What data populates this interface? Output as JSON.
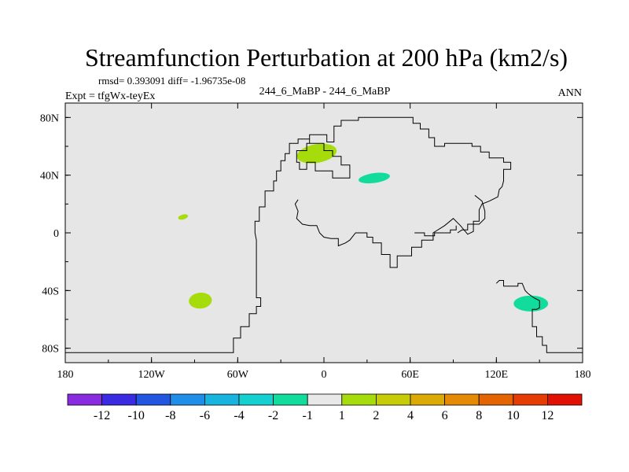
{
  "chart_data": {
    "type": "contour_map",
    "title": "Streamfunction Perturbation at 200 hPa (km2/s)",
    "stats_label": "rmsd= 0.393091 diff= -1.96735e-08",
    "experiment_label": "Expt = tfgWx-teyEx",
    "case_label": "244_6_MaBP - 244_6_MaBP",
    "season_label": "ANN",
    "xlim": [
      -180,
      180
    ],
    "ylim": [
      -90,
      90
    ],
    "x_ticks": [
      {
        "value": -180,
        "label": "180"
      },
      {
        "value": -120,
        "label": "120W"
      },
      {
        "value": -60,
        "label": "60W"
      },
      {
        "value": 0,
        "label": "0"
      },
      {
        "value": 60,
        "label": "60E"
      },
      {
        "value": 120,
        "label": "120E"
      },
      {
        "value": 180,
        "label": "180"
      }
    ],
    "y_ticks": [
      {
        "value": 80,
        "label": "80N"
      },
      {
        "value": 40,
        "label": "40N"
      },
      {
        "value": 0,
        "label": "0"
      },
      {
        "value": -40,
        "label": "40S"
      },
      {
        "value": -80,
        "label": "80S"
      }
    ],
    "colorbar": {
      "colors": [
        "#8A2BE2",
        "#3A2BE2",
        "#2255E0",
        "#1E8EE8",
        "#18B4E0",
        "#14D0D0",
        "#12DC9C",
        "#E8E8E8",
        "#A6DC0C",
        "#C8CC08",
        "#DCAA04",
        "#E48A04",
        "#E46402",
        "#E43C02",
        "#E01002"
      ],
      "labels": [
        "-12",
        "-10",
        "-8",
        "-6",
        "-4",
        "-2",
        "-1",
        "1",
        "2",
        "4",
        "6",
        "8",
        "10",
        "12"
      ]
    },
    "anomalies": [
      {
        "name": "positive-anomaly-north-atlantic",
        "lon": -5,
        "lat": 55,
        "rx": 14,
        "ry": 6.5,
        "rot": -10,
        "color": "#A6DC0C"
      },
      {
        "name": "negative-anomaly-middle-east",
        "lon": 35,
        "lat": 38,
        "rx": 11,
        "ry": 3.4,
        "rot": -8,
        "color": "#12DC9C"
      },
      {
        "name": "positive-anomaly-tropical-pacific",
        "lon": -98,
        "lat": 11,
        "rx": 3.5,
        "ry": 1.7,
        "rot": -15,
        "color": "#A6DC0C"
      },
      {
        "name": "positive-anomaly-south-pacific",
        "lon": -86,
        "lat": -47,
        "rx": 8,
        "ry": 5.5,
        "rot": -5,
        "color": "#A6DC0C"
      },
      {
        "name": "negative-anomaly-south-of-australia",
        "lon": 144,
        "lat": -49,
        "rx": 12,
        "ry": 5.5,
        "rot": 0,
        "color": "#12DC9C"
      }
    ],
    "coastlines": [
      [
        [
          -180,
          -83
        ],
        [
          -63,
          -83
        ],
        [
          -63,
          -73
        ],
        [
          -58,
          -73
        ],
        [
          -58,
          -65
        ],
        [
          -52,
          -65
        ],
        [
          -52,
          -56
        ],
        [
          -47,
          -56
        ],
        [
          -47,
          -51
        ],
        [
          -44,
          -51
        ],
        [
          -44,
          -45
        ],
        [
          -47,
          -45
        ],
        [
          -47,
          -38
        ],
        [
          -47,
          -15
        ],
        [
          -47,
          -5
        ],
        [
          -48,
          0
        ],
        [
          -48,
          8
        ],
        [
          -45,
          8
        ],
        [
          -45,
          18
        ],
        [
          -41,
          18
        ],
        [
          -41,
          29
        ],
        [
          -35,
          29
        ],
        [
          -35,
          36
        ],
        [
          -33,
          36
        ],
        [
          -33,
          43
        ],
        [
          -30,
          43
        ],
        [
          -30,
          50
        ],
        [
          -27,
          50
        ],
        [
          -27,
          55
        ],
        [
          -24,
          55
        ],
        [
          -24,
          62
        ],
        [
          -18,
          62
        ],
        [
          -18,
          65
        ],
        [
          -10,
          65
        ],
        [
          -10,
          62
        ],
        [
          0,
          62
        ],
        [
          0,
          57
        ],
        [
          6,
          57
        ],
        [
          6,
          53
        ],
        [
          12,
          53
        ],
        [
          12,
          47
        ],
        [
          18,
          47
        ],
        [
          18,
          38
        ],
        [
          12,
          38
        ],
        [
          6,
          38
        ],
        [
          6,
          43
        ],
        [
          0,
          43
        ],
        [
          -6,
          43
        ],
        [
          -6,
          49
        ],
        [
          -12,
          49
        ],
        [
          -12,
          44
        ],
        [
          -17,
          44
        ],
        [
          -17,
          49
        ],
        [
          -19,
          49
        ],
        [
          -19,
          57
        ],
        [
          -12,
          57
        ],
        [
          -12,
          62
        ],
        [
          -10,
          62
        ],
        [
          -10,
          68
        ],
        [
          -2,
          68
        ],
        [
          2,
          68
        ],
        [
          2,
          63
        ],
        [
          7,
          63
        ],
        [
          7,
          74
        ],
        [
          12,
          74
        ],
        [
          12,
          78
        ],
        [
          24,
          78
        ],
        [
          24,
          80
        ],
        [
          62,
          80
        ],
        [
          62,
          76
        ],
        [
          67,
          76
        ],
        [
          67,
          72
        ],
        [
          73,
          72
        ],
        [
          73,
          66
        ],
        [
          77,
          66
        ],
        [
          77,
          60
        ],
        [
          84,
          60
        ],
        [
          84,
          62
        ],
        [
          103,
          62
        ],
        [
          103,
          60
        ],
        [
          109,
          60
        ],
        [
          109,
          56
        ],
        [
          115,
          56
        ],
        [
          115,
          52
        ],
        [
          125,
          52
        ],
        [
          125,
          49
        ],
        [
          130,
          49
        ],
        [
          130,
          44
        ],
        [
          125,
          44
        ],
        [
          125,
          36
        ],
        [
          124,
          32
        ],
        [
          122,
          30
        ],
        [
          121,
          25
        ],
        [
          115,
          22
        ],
        [
          110,
          20
        ],
        [
          108,
          16
        ],
        [
          108,
          8
        ],
        [
          104,
          8
        ],
        [
          104,
          1
        ],
        [
          100,
          -1
        ],
        [
          95,
          5
        ],
        [
          90,
          10
        ],
        [
          84,
          5
        ],
        [
          76,
          0
        ],
        [
          76,
          -5
        ],
        [
          68,
          -5
        ],
        [
          68,
          -10
        ],
        [
          61,
          -10
        ],
        [
          61,
          -16
        ],
        [
          51,
          -16
        ],
        [
          51,
          -24
        ],
        [
          46,
          -24
        ],
        [
          46,
          -15
        ],
        [
          40,
          -15
        ],
        [
          40,
          -7
        ],
        [
          34,
          -7
        ],
        [
          34,
          -3
        ],
        [
          30,
          -3
        ],
        [
          30,
          0
        ],
        [
          22,
          0
        ],
        [
          18,
          -5
        ],
        [
          15,
          -7
        ],
        [
          10,
          -9
        ],
        [
          10,
          -4
        ],
        [
          5,
          -4
        ],
        [
          0,
          -3
        ],
        [
          -3,
          0
        ],
        [
          -5,
          5
        ],
        [
          -10,
          5
        ],
        [
          -15,
          6
        ],
        [
          -19,
          10
        ],
        [
          -18,
          15
        ],
        [
          -20,
          20
        ],
        [
          -18,
          23
        ]
      ],
      [
        [
          105,
          26
        ],
        [
          110,
          22
        ],
        [
          112,
          15
        ],
        [
          112,
          10
        ],
        [
          108,
          6
        ],
        [
          100,
          6
        ],
        [
          100,
          2
        ],
        [
          96,
          2
        ],
        [
          93,
          0
        ]
      ],
      [
        [
          63,
          0
        ],
        [
          70,
          0
        ],
        [
          70,
          -2
        ],
        [
          77,
          -2
        ],
        [
          77,
          0
        ],
        [
          88,
          0
        ],
        [
          88,
          2
        ],
        [
          92,
          2
        ],
        [
          92,
          5
        ]
      ],
      [
        [
          120,
          -35
        ],
        [
          122,
          -33
        ],
        [
          125,
          -33
        ],
        [
          125,
          -37
        ],
        [
          135,
          -37
        ],
        [
          135,
          -35
        ],
        [
          138,
          -35
        ],
        [
          140,
          -40
        ],
        [
          142,
          -42
        ],
        [
          146,
          -45
        ],
        [
          150,
          -47
        ],
        [
          150,
          -52
        ],
        [
          148,
          -53
        ],
        [
          145,
          -53
        ],
        [
          145,
          -65
        ],
        [
          148,
          -65
        ],
        [
          148,
          -72
        ],
        [
          152,
          -72
        ],
        [
          152,
          -78
        ],
        [
          155,
          -78
        ],
        [
          155,
          -83
        ],
        [
          180,
          -83
        ]
      ]
    ]
  }
}
